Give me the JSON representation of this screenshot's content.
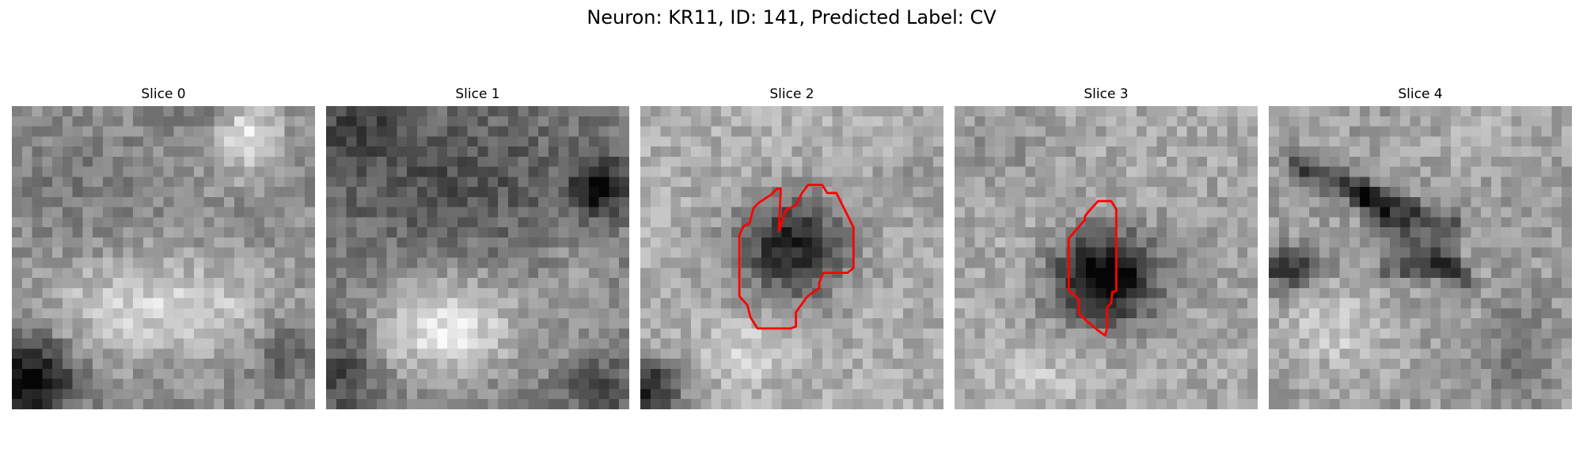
{
  "figure": {
    "title": "Neuron: KR11, ID: 141, Predicted Label: CV"
  },
  "colormap": "gray",
  "grid_size": 30,
  "contour_color": "#ff0000",
  "slices": [
    {
      "title": "Slice 0",
      "pattern": "Mottled grey texture with a bright blob at upper right, bright lower-middle band and a dark patch at bottom left",
      "has_contour": false
    },
    {
      "title": "Slice 1",
      "pattern": "Dark upper half with a very dark spot at right edge, bright blob in lower-left center",
      "has_contour": false
    },
    {
      "title": "Slice 2",
      "pattern": "Light mottled field with a dark round blob in the center outlined by a red contour, dark patch at bottom left",
      "has_contour": true
    },
    {
      "title": "Slice 3",
      "pattern": "Light field with a very dark round blob in the center and a narrow red contour over it",
      "has_contour": true
    },
    {
      "title": "Slice 4",
      "pattern": "Mixed texture with dark diagonal streaks from upper left to right, bright patches at lower left",
      "has_contour": false
    }
  ]
}
